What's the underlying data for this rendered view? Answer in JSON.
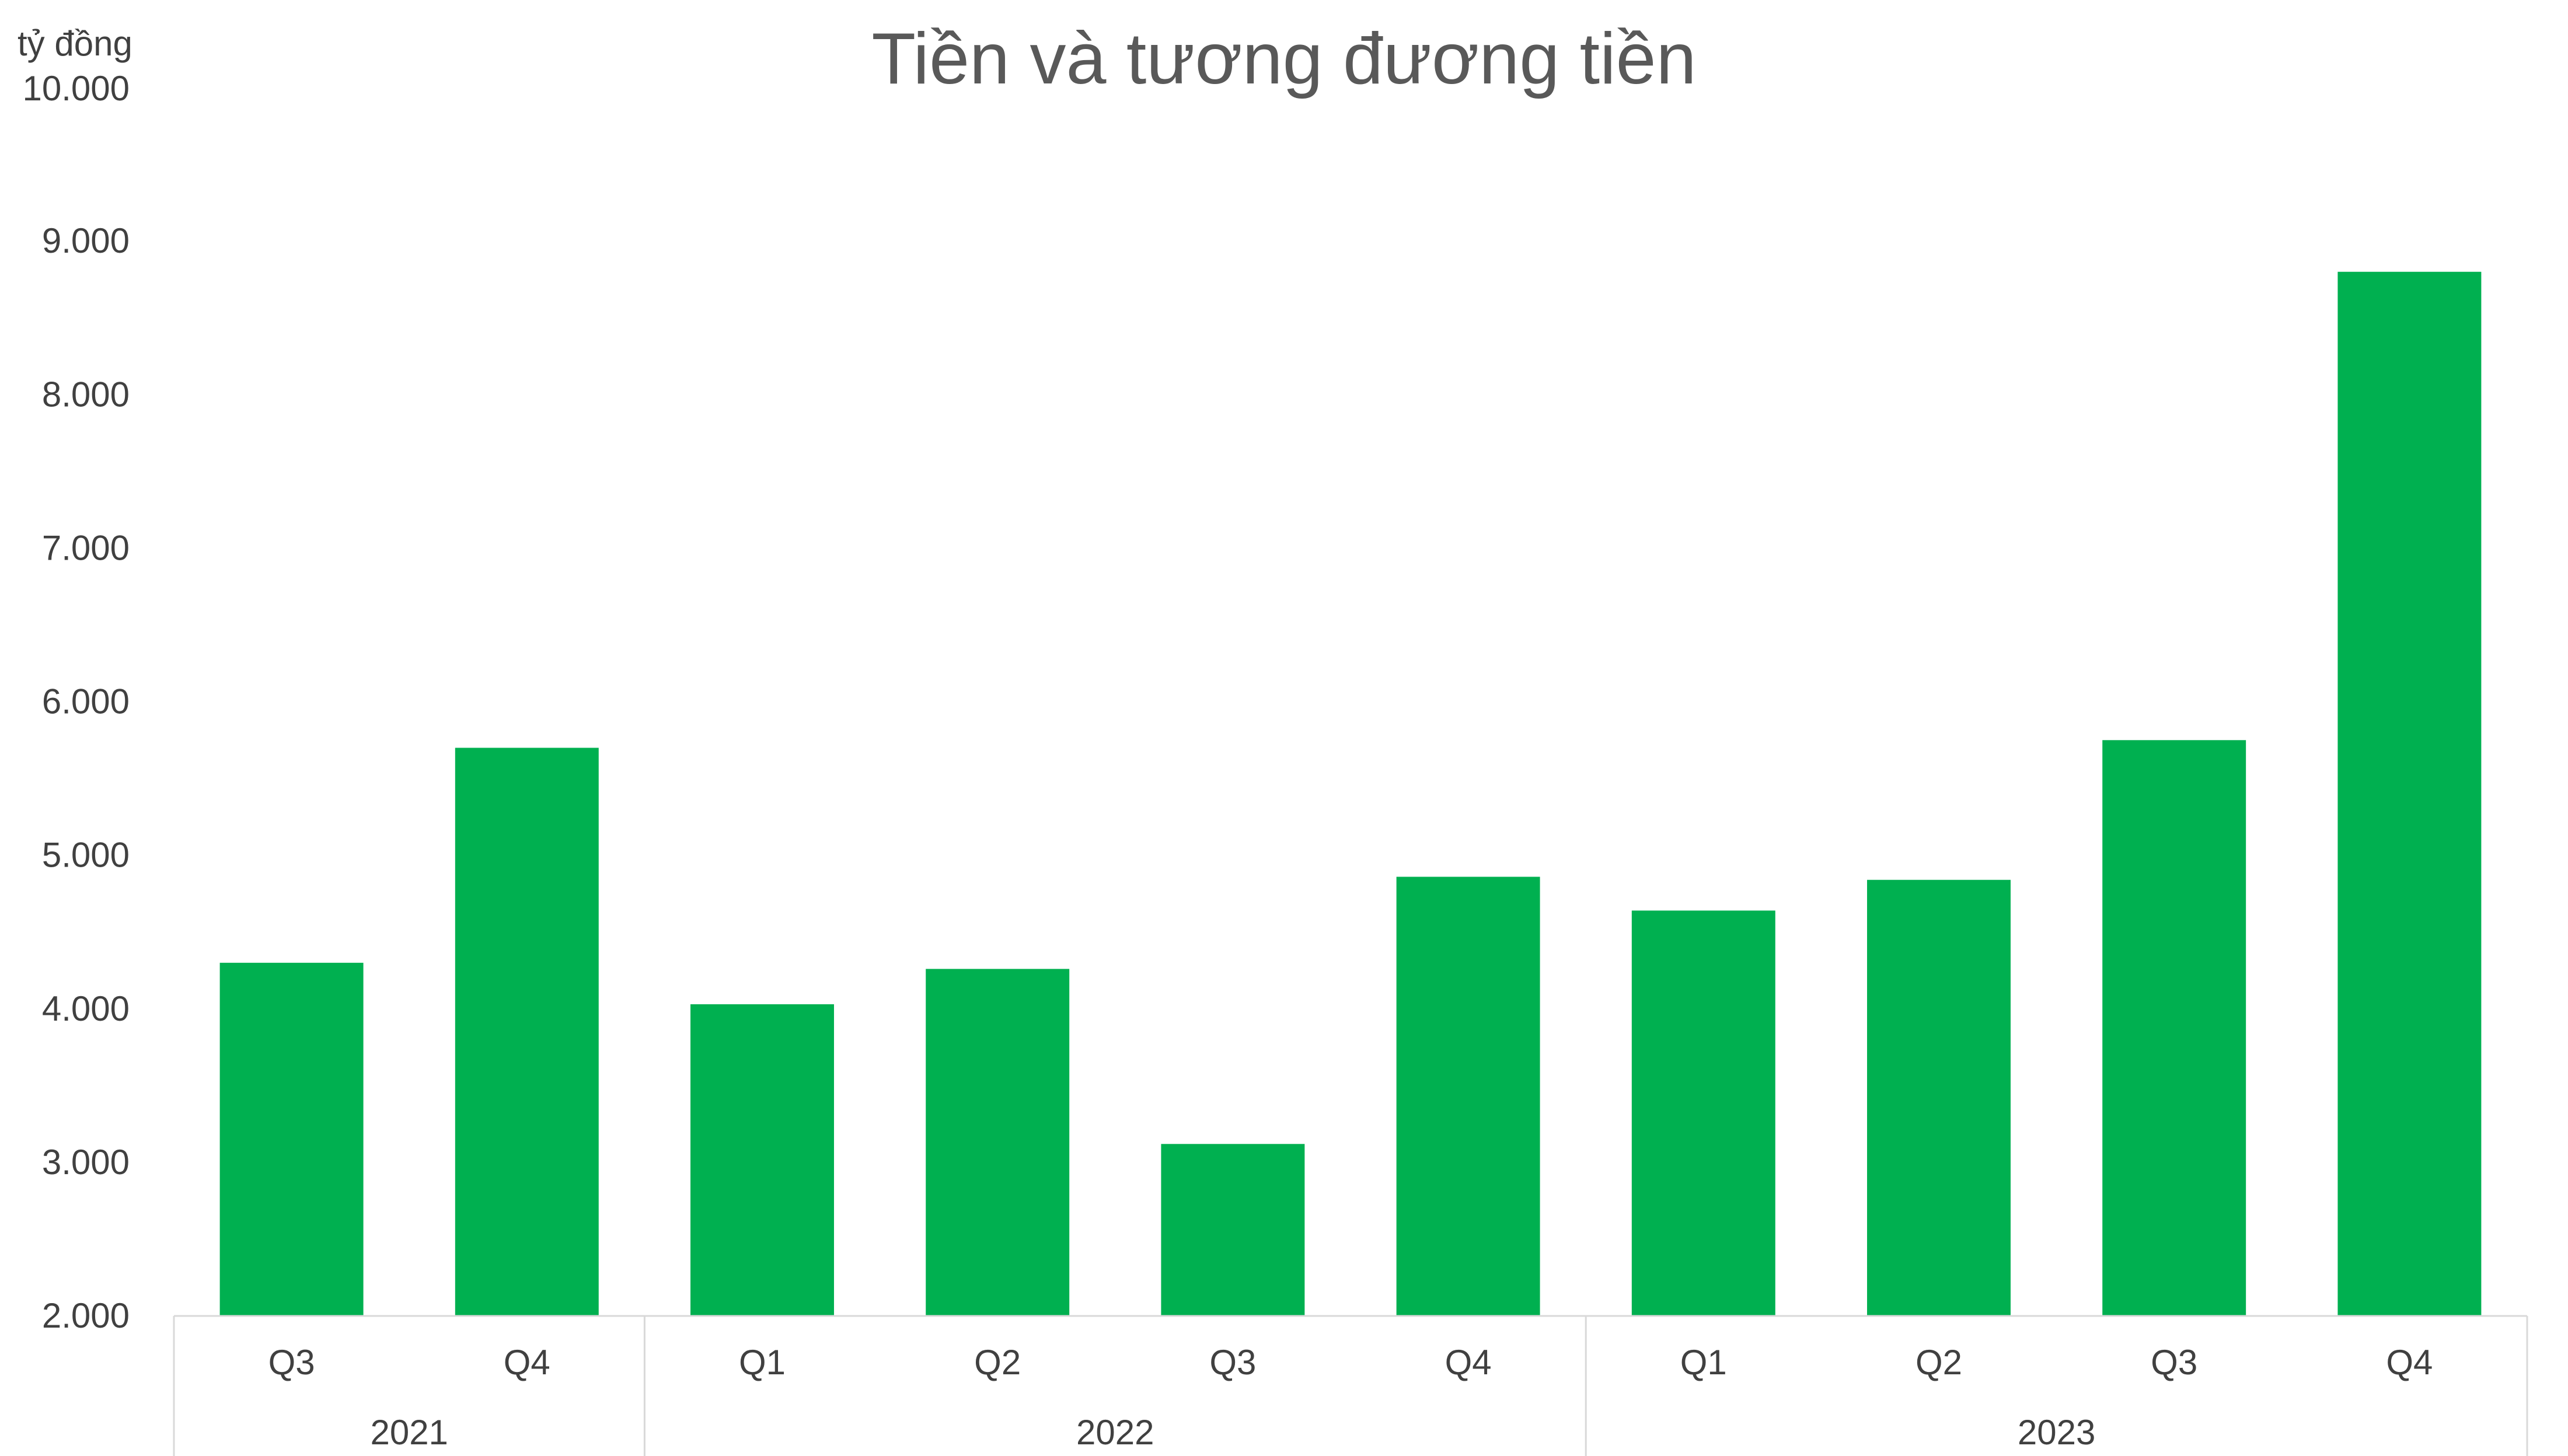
{
  "chart_data": {
    "type": "bar",
    "title": "Tiền và tương đương tiền",
    "ylabel": "tỷ đồng",
    "xlabel": "",
    "ylim": [
      2000,
      10000
    ],
    "y_ticks": [
      {
        "value": 2000,
        "label": "2.000"
      },
      {
        "value": 3000,
        "label": "3.000"
      },
      {
        "value": 4000,
        "label": "4.000"
      },
      {
        "value": 5000,
        "label": "5.000"
      },
      {
        "value": 6000,
        "label": "6.000"
      },
      {
        "value": 7000,
        "label": "7.000"
      },
      {
        "value": 8000,
        "label": "8.000"
      },
      {
        "value": 9000,
        "label": "9.000"
      },
      {
        "value": 10000,
        "label": "10.000"
      }
    ],
    "categories": [
      "Q3",
      "Q4",
      "Q1",
      "Q2",
      "Q3",
      "Q4",
      "Q1",
      "Q2",
      "Q3",
      "Q4"
    ],
    "groups": [
      {
        "label": "2021",
        "count": 2
      },
      {
        "label": "2022",
        "count": 4
      },
      {
        "label": "2023",
        "count": 4
      }
    ],
    "values": [
      4300,
      5700,
      4030,
      4260,
      3120,
      4860,
      4640,
      4840,
      5750,
      8800
    ],
    "bar_color": "#00B050",
    "grid": false,
    "legend": "none"
  }
}
